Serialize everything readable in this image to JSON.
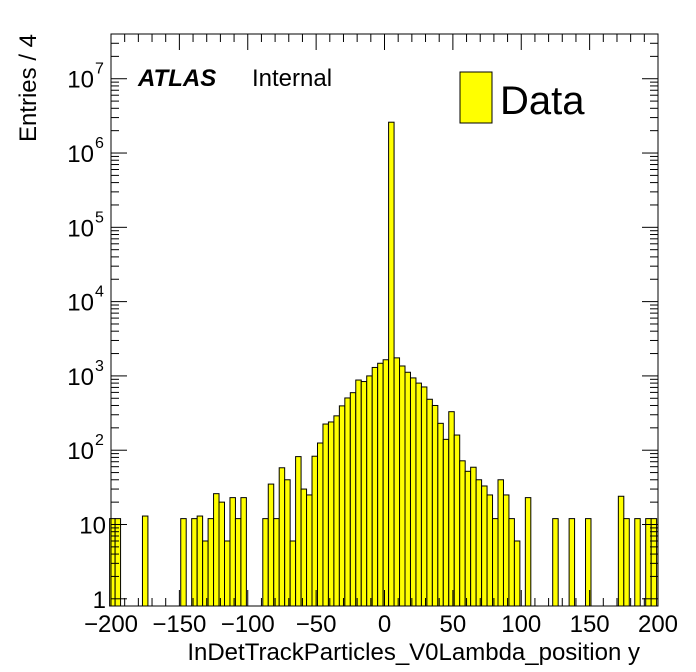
{
  "chart_data": {
    "type": "bar",
    "style": "histogram",
    "x_scale": "linear",
    "y_scale": "log",
    "xlim": [
      -200,
      200
    ],
    "ylim": [
      0.8,
      40000000
    ],
    "bin_width": 4,
    "fill_color": "#ffff00",
    "edge_color": "#000000",
    "xlabel": "InDetTrackParticles_V0Lambda_position y",
    "ylabel": "Entries / 4",
    "x_ticks": [
      -200,
      -150,
      -100,
      -50,
      0,
      50,
      100,
      150,
      200
    ],
    "x_tick_labels": [
      "−200",
      "−150",
      "−100",
      "−50",
      "0",
      "50",
      "100",
      "150",
      "200"
    ],
    "y_ticks": [
      {
        "value": 1,
        "base": "1",
        "exp": ""
      },
      {
        "value": 10,
        "base": "10",
        "exp": ""
      },
      {
        "value": 100,
        "base": "10",
        "exp": "2"
      },
      {
        "value": 1000,
        "base": "10",
        "exp": "3"
      },
      {
        "value": 10000,
        "base": "10",
        "exp": "4"
      },
      {
        "value": 100000,
        "base": "10",
        "exp": "5"
      },
      {
        "value": 1000000,
        "base": "10",
        "exp": "6"
      },
      {
        "value": 10000000,
        "base": "10",
        "exp": "7"
      }
    ],
    "legend": {
      "label": "Data",
      "position": "top-right"
    },
    "annotation": {
      "bold": "ATLAS",
      "normal": "Internal"
    },
    "bins": [
      {
        "x": -199,
        "y": 12
      },
      {
        "x": -195,
        "y": 12
      },
      {
        "x": -175,
        "y": 13
      },
      {
        "x": -147,
        "y": 12
      },
      {
        "x": -139,
        "y": 12
      },
      {
        "x": -135,
        "y": 13
      },
      {
        "x": -131,
        "y": 6
      },
      {
        "x": -127,
        "y": 12
      },
      {
        "x": -123,
        "y": 26
      },
      {
        "x": -119,
        "y": 20
      },
      {
        "x": -115,
        "y": 6
      },
      {
        "x": -111,
        "y": 23
      },
      {
        "x": -107,
        "y": 12
      },
      {
        "x": -103,
        "y": 23
      },
      {
        "x": -87,
        "y": 12
      },
      {
        "x": -83,
        "y": 35
      },
      {
        "x": -79,
        "y": 12
      },
      {
        "x": -75,
        "y": 58
      },
      {
        "x": -71,
        "y": 40
      },
      {
        "x": -67,
        "y": 6
      },
      {
        "x": -63,
        "y": 82
      },
      {
        "x": -59,
        "y": 30
      },
      {
        "x": -55,
        "y": 25
      },
      {
        "x": -51,
        "y": 83
      },
      {
        "x": -47,
        "y": 125
      },
      {
        "x": -43,
        "y": 225
      },
      {
        "x": -39,
        "y": 240
      },
      {
        "x": -35,
        "y": 290
      },
      {
        "x": -31,
        "y": 395
      },
      {
        "x": -27,
        "y": 505
      },
      {
        "x": -23,
        "y": 595
      },
      {
        "x": -19,
        "y": 880
      },
      {
        "x": -15,
        "y": 840
      },
      {
        "x": -11,
        "y": 1000
      },
      {
        "x": -7,
        "y": 1300
      },
      {
        "x": -3,
        "y": 1480
      },
      {
        "x": 1,
        "y": 1650
      },
      {
        "x": 5,
        "y": 2600000
      },
      {
        "x": 9,
        "y": 1750
      },
      {
        "x": 13,
        "y": 1360
      },
      {
        "x": 17,
        "y": 1120
      },
      {
        "x": 21,
        "y": 940
      },
      {
        "x": 25,
        "y": 800
      },
      {
        "x": 29,
        "y": 710
      },
      {
        "x": 33,
        "y": 485
      },
      {
        "x": 37,
        "y": 400
      },
      {
        "x": 41,
        "y": 230
      },
      {
        "x": 45,
        "y": 140
      },
      {
        "x": 49,
        "y": 330
      },
      {
        "x": 53,
        "y": 160
      },
      {
        "x": 57,
        "y": 72
      },
      {
        "x": 61,
        "y": 52
      },
      {
        "x": 65,
        "y": 59
      },
      {
        "x": 69,
        "y": 40
      },
      {
        "x": 73,
        "y": 33
      },
      {
        "x": 77,
        "y": 25
      },
      {
        "x": 81,
        "y": 12
      },
      {
        "x": 85,
        "y": 40
      },
      {
        "x": 89,
        "y": 25
      },
      {
        "x": 93,
        "y": 12
      },
      {
        "x": 97,
        "y": 6
      },
      {
        "x": 105,
        "y": 23
      },
      {
        "x": 125,
        "y": 12
      },
      {
        "x": 137,
        "y": 12
      },
      {
        "x": 149,
        "y": 12
      },
      {
        "x": 173,
        "y": 24
      },
      {
        "x": 177,
        "y": 12
      },
      {
        "x": 185,
        "y": 12
      },
      {
        "x": 193,
        "y": 12
      },
      {
        "x": 197,
        "y": 12
      }
    ]
  }
}
